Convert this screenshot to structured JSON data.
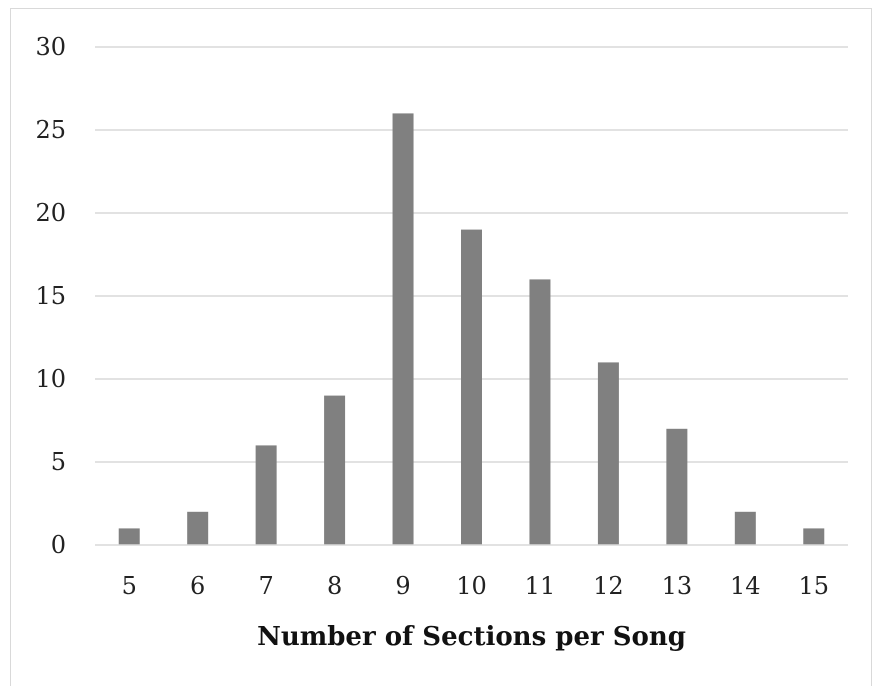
{
  "chart_data": {
    "type": "bar",
    "categories": [
      "5",
      "6",
      "7",
      "8",
      "9",
      "10",
      "11",
      "12",
      "13",
      "14",
      "15"
    ],
    "values": [
      1,
      2,
      6,
      9,
      26,
      19,
      16,
      11,
      7,
      2,
      1
    ],
    "xlabel": "Number of Sections per Song",
    "ylabel": "",
    "ylim": [
      0,
      30
    ],
    "yticks": [
      0,
      5,
      10,
      15,
      20,
      25,
      30
    ],
    "grid": true,
    "legend": "none",
    "bar_color": "#808080",
    "grid_color": "#d9d9d9"
  }
}
